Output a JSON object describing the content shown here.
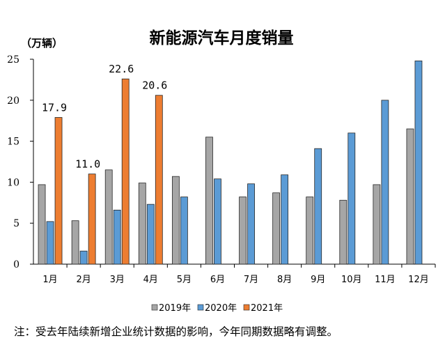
{
  "chart_data": {
    "type": "bar",
    "title": "新能源汽车月度销量",
    "ylabel": "（万辆）",
    "xlabel": "",
    "ylim": [
      0,
      25
    ],
    "yticks": [
      0,
      5,
      10,
      15,
      20,
      25
    ],
    "categories": [
      "1月",
      "2月",
      "3月",
      "4月",
      "5月",
      "6月",
      "7月",
      "8月",
      "9月",
      "10月",
      "11月",
      "12月"
    ],
    "series": [
      {
        "name": "2019年",
        "color": "#a6a6a6",
        "values": [
          9.7,
          5.3,
          11.5,
          9.9,
          10.7,
          15.5,
          8.2,
          8.7,
          8.2,
          7.8,
          9.7,
          16.5
        ]
      },
      {
        "name": "2020年",
        "color": "#5b9bd5",
        "values": [
          5.2,
          1.6,
          6.6,
          7.3,
          8.2,
          10.4,
          9.8,
          10.9,
          14.1,
          16.0,
          20.0,
          24.8
        ]
      },
      {
        "name": "2021年",
        "color": "#ed7d31",
        "values": [
          17.9,
          11.0,
          22.6,
          20.6,
          null,
          null,
          null,
          null,
          null,
          null,
          null,
          null
        ]
      }
    ],
    "data_labels": [
      {
        "series": 2,
        "index": 0,
        "text": "17.9"
      },
      {
        "series": 2,
        "index": 1,
        "text": "11.0"
      },
      {
        "series": 2,
        "index": 2,
        "text": "22.6"
      },
      {
        "series": 2,
        "index": 3,
        "text": "20.6"
      }
    ],
    "legend_position": "bottom",
    "grid": false,
    "note": "注：受去年陆续新增企业统计数据的影响，今年同期数据略有调整。"
  }
}
